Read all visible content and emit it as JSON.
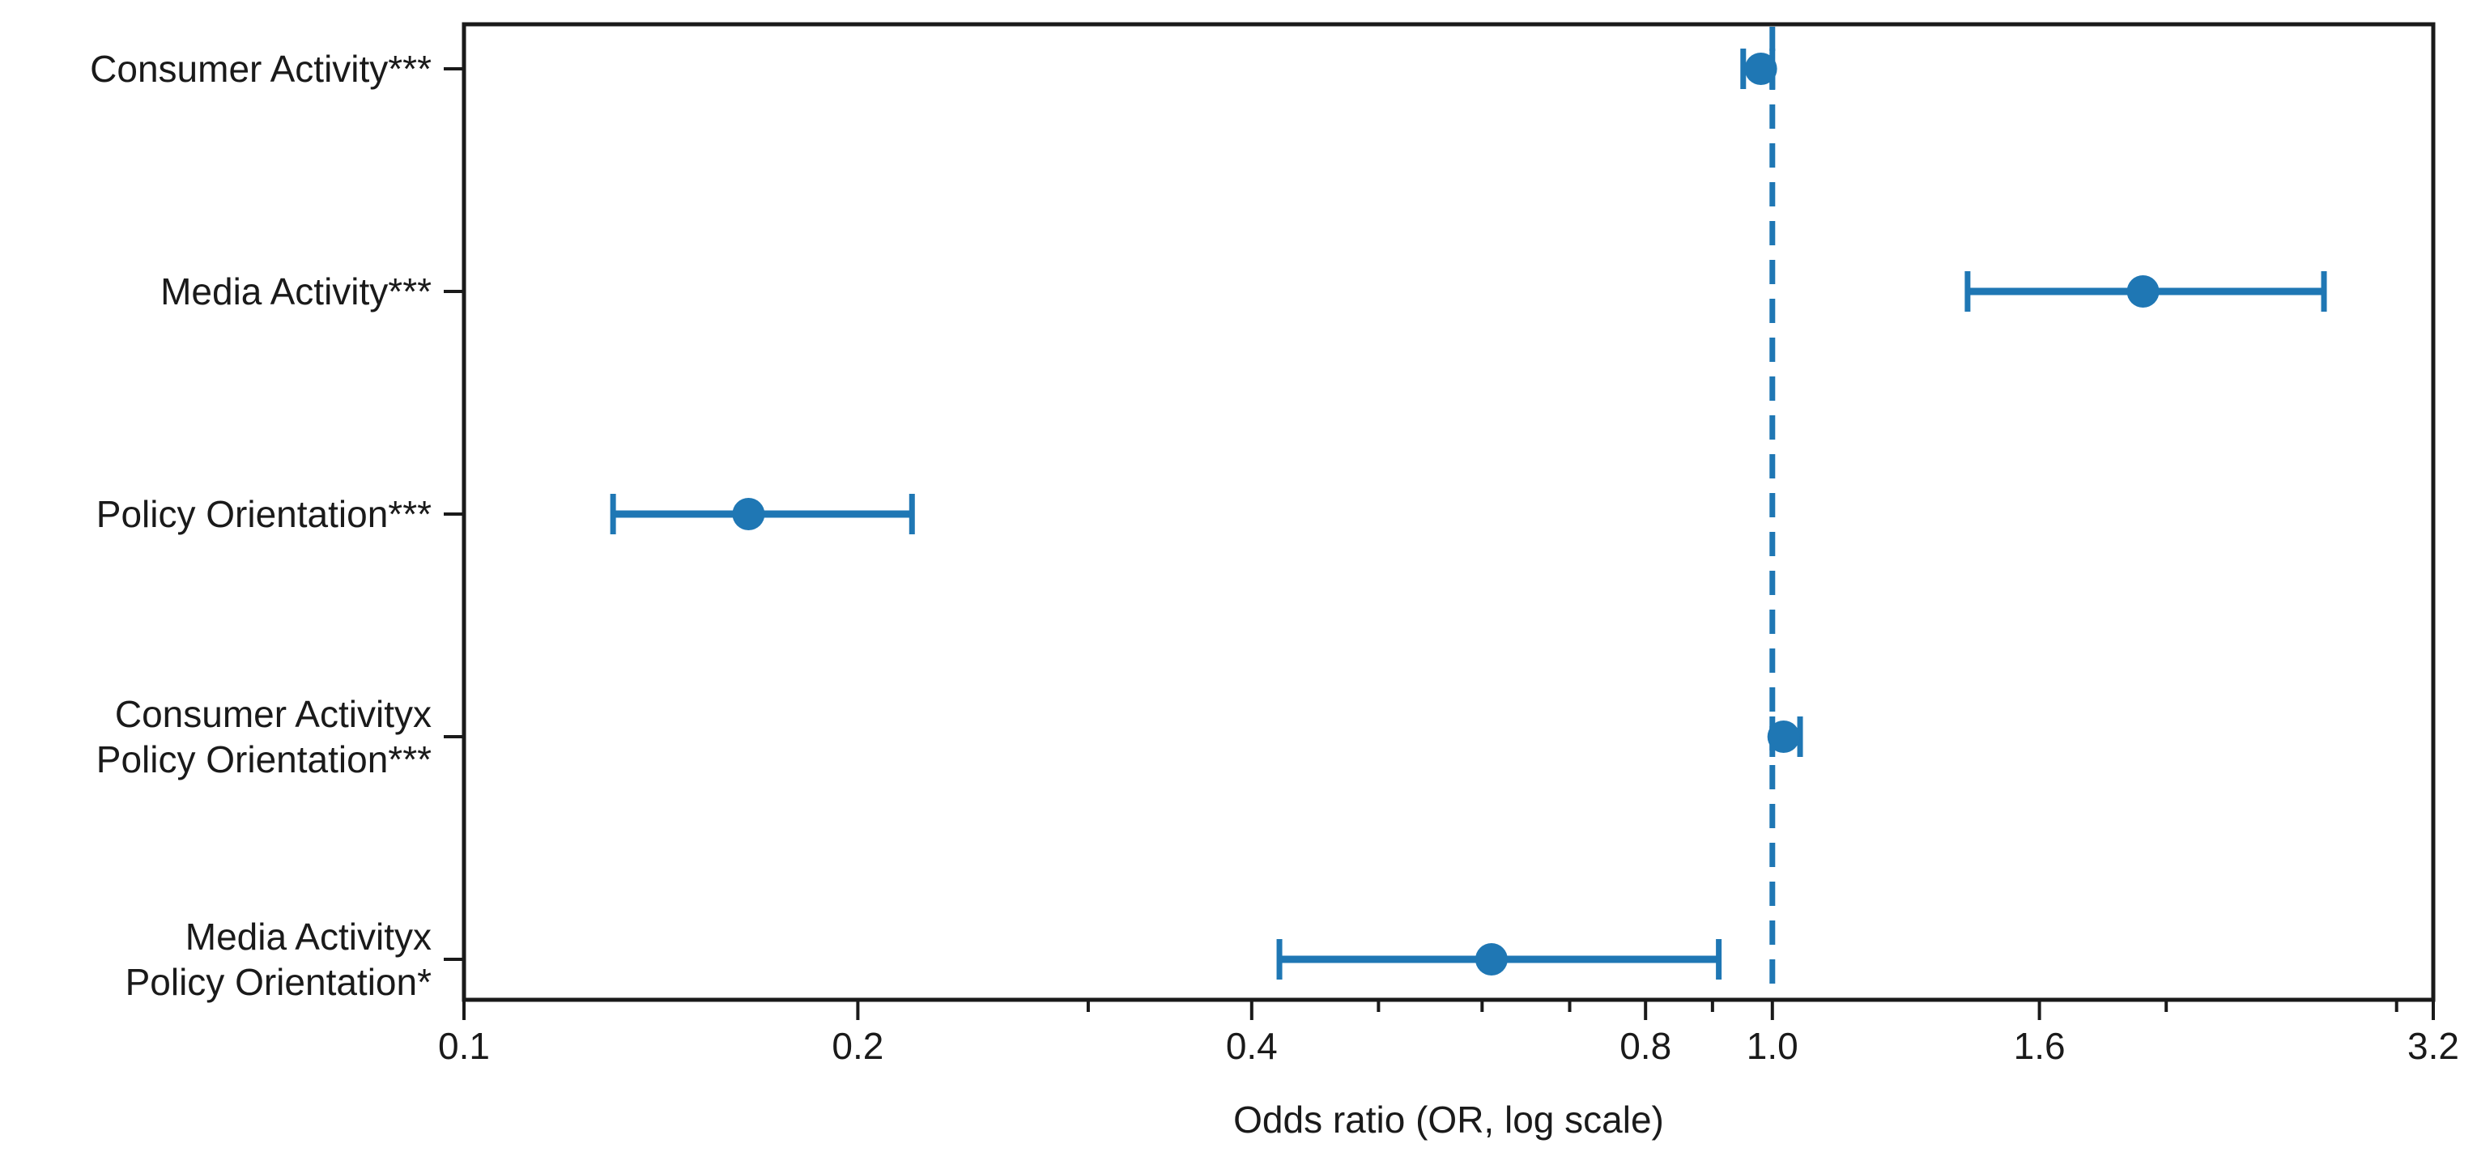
{
  "figure": {
    "background": "#ffffff",
    "text_color": "#1a1a1a",
    "spine_color": "#1a1a1a",
    "accent_color": "#1f77b4"
  },
  "chart_data": {
    "type": "scatter",
    "subtype": "forest-plot-errorbar",
    "title": "",
    "xlabel": "Odds ratio (OR, log scale)",
    "ylabel": "",
    "xscale": "log",
    "xlim": [
      0.1,
      3.2
    ],
    "grid": false,
    "legend": null,
    "x_major_ticks": [
      0.1,
      0.2,
      0.4,
      0.8,
      1.0,
      1.6,
      3.2
    ],
    "x_major_tick_labels": [
      "0.1",
      "0.2",
      "0.4",
      "0.8",
      "1.0",
      "1.6",
      "3.2"
    ],
    "x_minor_ticks": [
      0.3,
      0.5,
      0.6,
      0.7,
      0.9,
      2.0,
      3.0
    ],
    "reference_line": {
      "x": 1.0,
      "style": "dashed",
      "color": "#1f77b4"
    },
    "marker_color": "#1f77b4",
    "errorbar_color": "#1f77b4",
    "rows": [
      {
        "label_lines": [
          "Consumer Activity***"
        ],
        "or": 0.98,
        "ci_low": 0.95,
        "ci_high": 1.0
      },
      {
        "label_lines": [
          "Media Activity***"
        ],
        "or": 1.92,
        "ci_low": 1.41,
        "ci_high": 2.64
      },
      {
        "label_lines": [
          "Policy Orientation***"
        ],
        "or": 0.165,
        "ci_low": 0.13,
        "ci_high": 0.22
      },
      {
        "label_lines": [
          "Consumer Activityx",
          "Policy Orientation***"
        ],
        "or": 1.02,
        "ci_low": 1.0,
        "ci_high": 1.05
      },
      {
        "label_lines": [
          "Media Activityx",
          "Policy Orientation*"
        ],
        "or": 0.61,
        "ci_low": 0.42,
        "ci_high": 0.91
      }
    ]
  }
}
